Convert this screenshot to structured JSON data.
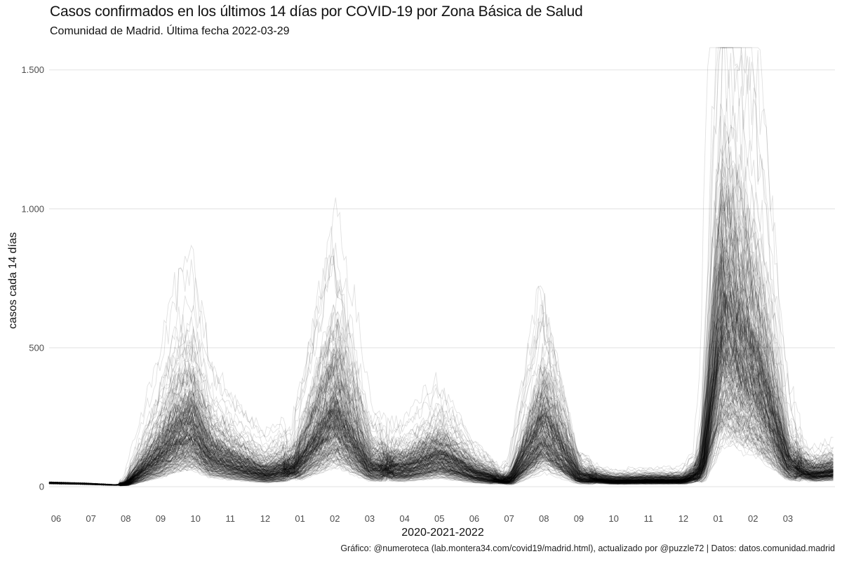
{
  "chart_data": {
    "type": "line",
    "title": "Casos confirmados en los últimos 14 días por COVID-19 por Zona Básica de Salud",
    "subtitle": "Comunidad de Madrid. Última fecha 2022-03-29",
    "xlabel": "2020-2021-2022",
    "ylabel": "casos cada 14 días",
    "caption": "Gráfico: @numeroteca (lab.montera34.com/covid19/madrid.html), actualizado por @puzzle72  | Datos: datos.comunidad.madrid",
    "ylim": [
      0,
      1600
    ],
    "xlim": [
      0,
      22.55
    ],
    "y_ticks": [
      {
        "value": 0,
        "label": "0"
      },
      {
        "value": 500,
        "label": "500"
      },
      {
        "value": 1000,
        "label": "1.000"
      },
      {
        "value": 1500,
        "label": "1.500"
      }
    ],
    "x_ticks": [
      {
        "value": 0.2,
        "label": "06"
      },
      {
        "value": 1.2,
        "label": "07"
      },
      {
        "value": 2.2,
        "label": "08"
      },
      {
        "value": 3.2,
        "label": "09"
      },
      {
        "value": 4.2,
        "label": "10"
      },
      {
        "value": 5.2,
        "label": "11"
      },
      {
        "value": 6.2,
        "label": "12"
      },
      {
        "value": 7.2,
        "label": "01"
      },
      {
        "value": 8.2,
        "label": "02"
      },
      {
        "value": 9.2,
        "label": "03"
      },
      {
        "value": 10.2,
        "label": "04"
      },
      {
        "value": 11.2,
        "label": "05"
      },
      {
        "value": 12.2,
        "label": "06"
      },
      {
        "value": 13.2,
        "label": "07"
      },
      {
        "value": 14.2,
        "label": "08"
      },
      {
        "value": 15.2,
        "label": "09"
      },
      {
        "value": 16.2,
        "label": "10"
      },
      {
        "value": 17.2,
        "label": "11"
      },
      {
        "value": 18.2,
        "label": "12"
      },
      {
        "value": 19.2,
        "label": "01"
      },
      {
        "value": 20.2,
        "label": "02"
      },
      {
        "value": 21.2,
        "label": "03"
      }
    ],
    "grid": true,
    "series_description": "One line per Zona Básica de Salud (approx. 286 series)",
    "series_count": 286,
    "typical_profile": {
      "x": [
        0.0,
        1.0,
        1.9,
        2.2,
        3.2,
        3.6,
        4.1,
        4.6,
        5.2,
        6.2,
        7.0,
        7.25,
        8.2,
        9.2,
        10.2,
        11.2,
        12.2,
        13.0,
        13.25,
        14.2,
        15.2,
        16.2,
        17.2,
        18.2,
        18.6,
        18.75,
        19.3,
        20.3,
        21.2,
        21.9,
        22.55
      ],
      "y": [
        14,
        11,
        6,
        9,
        110,
        165,
        200,
        110,
        80,
        45,
        65,
        95,
        255,
        70,
        60,
        100,
        45,
        22,
        25,
        200,
        35,
        20,
        22,
        22,
        45,
        75,
        560,
        380,
        80,
        45,
        55
      ]
    },
    "line_color": "#000000",
    "line_opacity": 0.12
  }
}
